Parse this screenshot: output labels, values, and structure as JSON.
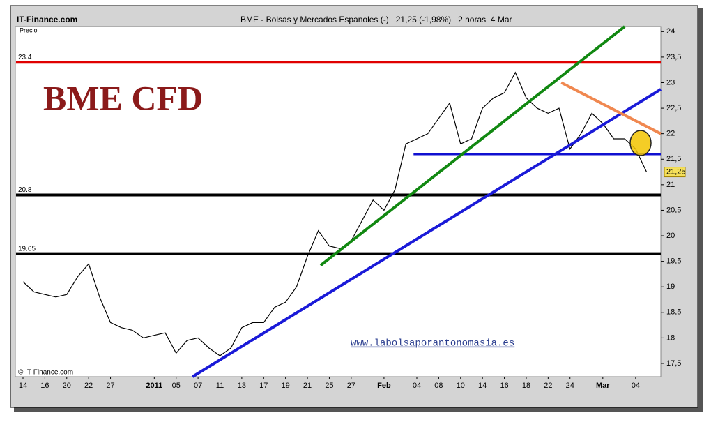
{
  "chart_data": {
    "type": "line",
    "source": "IT-Finance.com",
    "title": "BME - Bolsas y Mercados Espanoles (-)   21,25 (-1,98%)   2 horas  4 Mar",
    "y_label": "Precio",
    "annotation": "BME CFD",
    "watermark": "www.labolsaporantonomasia.es",
    "copyright": "© IT-Finance.com",
    "color": "#000000",
    "x": [
      0,
      1,
      2,
      3,
      4,
      5,
      6,
      7,
      8,
      9,
      10,
      11,
      12,
      13,
      14,
      15,
      16,
      17,
      18,
      19,
      20,
      21,
      22,
      23,
      24,
      25,
      26,
      27,
      28,
      29,
      30,
      31,
      32,
      33,
      34,
      35,
      36,
      37,
      38,
      39,
      40,
      41,
      42,
      43,
      44,
      45,
      46,
      47,
      48,
      49,
      50,
      51,
      52,
      53,
      54,
      55,
      56,
      57
    ],
    "values": [
      19.1,
      18.9,
      18.85,
      18.8,
      18.85,
      19.2,
      19.45,
      18.8,
      18.3,
      18.2,
      18.15,
      18.0,
      18.05,
      18.1,
      17.7,
      17.95,
      18.0,
      17.8,
      17.65,
      17.8,
      18.2,
      18.3,
      18.3,
      18.6,
      18.7,
      19.0,
      19.6,
      20.1,
      19.8,
      19.75,
      19.9,
      20.3,
      20.7,
      20.5,
      20.9,
      21.8,
      21.9,
      22.0,
      22.3,
      22.6,
      21.8,
      21.9,
      22.5,
      22.7,
      22.8,
      23.2,
      22.7,
      22.5,
      22.4,
      22.5,
      21.7,
      22.0,
      22.4,
      22.2,
      21.9,
      21.9,
      21.7,
      21.25
    ],
    "last_price": {
      "value": 21.25,
      "label": "21,25"
    },
    "xlim": [
      -0.7,
      58.3
    ],
    "ylim": [
      17.24,
      24.1
    ],
    "xticks": [
      {
        "value": 0,
        "label": "14"
      },
      {
        "value": 2,
        "label": "16"
      },
      {
        "value": 4,
        "label": "20"
      },
      {
        "value": 6,
        "label": "22"
      },
      {
        "value": 8,
        "label": "27"
      },
      {
        "value": 12,
        "label": "2011"
      },
      {
        "value": 14,
        "label": "05"
      },
      {
        "value": 16,
        "label": "07"
      },
      {
        "value": 18,
        "label": "11"
      },
      {
        "value": 20,
        "label": "13"
      },
      {
        "value": 22,
        "label": "17"
      },
      {
        "value": 24,
        "label": "19"
      },
      {
        "value": 26,
        "label": "21"
      },
      {
        "value": 28,
        "label": "25"
      },
      {
        "value": 30,
        "label": "27"
      },
      {
        "value": 33,
        "label": "Feb"
      },
      {
        "value": 36,
        "label": "04"
      },
      {
        "value": 38,
        "label": "08"
      },
      {
        "value": 40,
        "label": "10"
      },
      {
        "value": 42,
        "label": "14"
      },
      {
        "value": 44,
        "label": "16"
      },
      {
        "value": 46,
        "label": "18"
      },
      {
        "value": 48,
        "label": "22"
      },
      {
        "value": 50,
        "label": "24"
      },
      {
        "value": 53,
        "label": "Mar"
      },
      {
        "value": 56,
        "label": "04"
      }
    ],
    "yticks": [
      {
        "value": 17.5,
        "label": "17,5"
      },
      18,
      {
        "value": 18.5,
        "label": "18,5"
      },
      19,
      {
        "value": 19.5,
        "label": "19,5"
      },
      20,
      {
        "value": 20.5,
        "label": "20,5"
      },
      21,
      {
        "value": 21.5,
        "label": "21,5"
      },
      22,
      {
        "value": 22.5,
        "label": "22,5"
      },
      23,
      {
        "value": 23.5,
        "label": "23,5"
      },
      24
    ],
    "levels": [
      {
        "value": 23.4,
        "color": "#e00000"
      },
      {
        "value": 20.8,
        "color": "#000000"
      },
      {
        "value": 19.65,
        "color": "#000000"
      }
    ],
    "support": {
      "value": 21.6,
      "x": [
        35.7,
        58.3
      ],
      "color": "#1010d0"
    },
    "trendlines": [
      {
        "color": "#118811",
        "x": [
          27.2,
          55
        ],
        "y": [
          19.42,
          24.1
        ]
      },
      {
        "color": "#1a1ad8",
        "x": [
          15.5,
          58.3
        ],
        "y": [
          17.24,
          22.87
        ]
      },
      {
        "color": "#f08850",
        "x": [
          49.2,
          58.3
        ],
        "y": [
          23.0,
          22.0
        ]
      }
    ]
  }
}
